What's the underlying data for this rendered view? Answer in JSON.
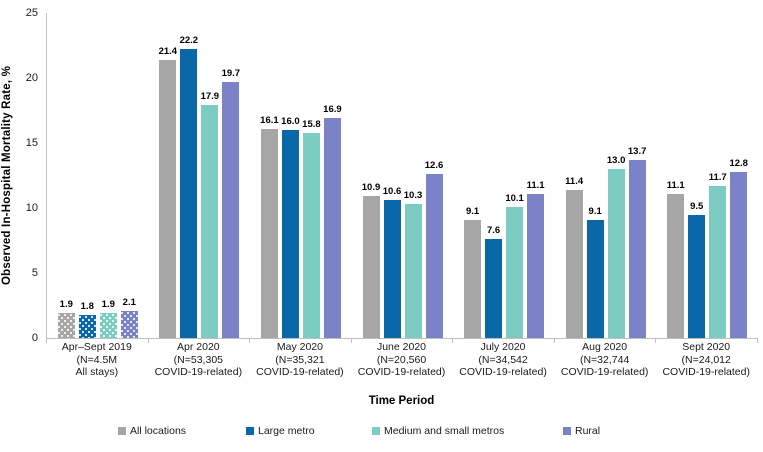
{
  "chart_data": {
    "type": "bar",
    "title": "",
    "ylabel": "Observed In-Hospital Mortality Rate, %",
    "xlabel": "Time Period",
    "ylim": [
      0,
      25
    ],
    "yticks": [
      25,
      20,
      15,
      10,
      5,
      0
    ],
    "grid": false,
    "legend_position": "bottom",
    "axis_color": "#bfbfbf",
    "first_group_pattern": "white-dots",
    "categories": [
      {
        "label_lines": [
          "Apr–Sept 2019",
          "(N=4.5M",
          "All stays)"
        ]
      },
      {
        "label_lines": [
          "Apr 2020",
          "(N=53,305",
          "COVID-19-related)"
        ]
      },
      {
        "label_lines": [
          "May 2020",
          "(N=35,321",
          "COVID-19-related)"
        ]
      },
      {
        "label_lines": [
          "June 2020",
          "(N=20,560",
          "COVID-19-related)"
        ]
      },
      {
        "label_lines": [
          "July 2020",
          "(N=34,542",
          "COVID-19-related)"
        ]
      },
      {
        "label_lines": [
          "Aug 2020",
          "(N=32,744",
          "COVID-19-related)"
        ]
      },
      {
        "label_lines": [
          "Sept 2020",
          "(N=24,012",
          "COVID-19-related)"
        ]
      }
    ],
    "series": [
      {
        "name": "All locations",
        "color": "#a6a6a6",
        "values": [
          1.9,
          21.4,
          16.1,
          10.9,
          9.1,
          11.4,
          11.1
        ],
        "value_labels": [
          "1.9",
          "21.4",
          "16.1",
          "10.9",
          "9.1",
          "11.4",
          "11.1"
        ]
      },
      {
        "name": "Large metro",
        "color": "#0a67a8",
        "values": [
          1.8,
          22.2,
          16.0,
          10.6,
          7.6,
          9.1,
          9.5
        ],
        "value_labels": [
          "1.8",
          "22.2",
          "16.0",
          "10.6",
          "7.6",
          "9.1",
          "9.5"
        ]
      },
      {
        "name": "Medium and small metros",
        "color": "#7dccc4",
        "values": [
          1.9,
          17.9,
          15.8,
          10.3,
          10.1,
          13.0,
          11.7
        ],
        "value_labels": [
          "1.9",
          "17.9",
          "15.8",
          "10.3",
          "10.1",
          "13.0",
          "11.7"
        ]
      },
      {
        "name": "Rural",
        "color": "#7b82c8",
        "values": [
          2.1,
          19.7,
          16.9,
          12.6,
          11.1,
          13.7,
          12.8
        ],
        "value_labels": [
          "2.1",
          "19.7",
          "16.9",
          "12.6",
          "11.1",
          "13.7",
          "12.8"
        ]
      }
    ]
  }
}
